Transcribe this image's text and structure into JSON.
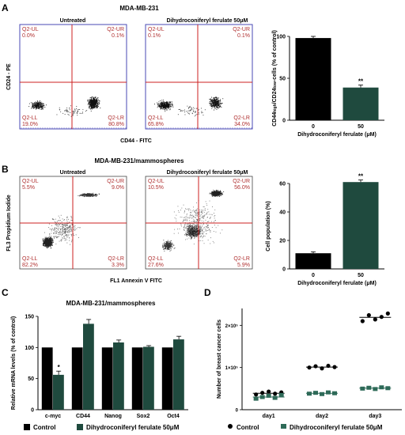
{
  "panel_letters": [
    "A",
    "B",
    "C",
    "D"
  ],
  "panelA": {
    "title": "MDA-MB-231",
    "flow_titles": [
      "Untreated",
      "Dihydroconiferyl ferulate 50μM"
    ],
    "xlabel": "CD44 - FITC",
    "ylabel": "CD24 - PE",
    "quadrants": [
      {
        "ul": "Q2-UL",
        "ul_v": "0.0%",
        "ur": "Q2-UR",
        "ur_v": "0.1%",
        "ll": "Q2-LL",
        "ll_v": "19.0%",
        "lr": "Q2-LR",
        "lr_v": "80.8%"
      },
      {
        "ul": "Q2-UL",
        "ul_v": "0.1%",
        "ur": "Q2-UR",
        "ur_v": "0.1%",
        "ll": "Q2-LL",
        "ll_v": "65.8%",
        "lr": "Q2-LR",
        "lr_v": "34.0%"
      }
    ]
  },
  "panelB": {
    "title": "MDA-MB-231/mammospheres",
    "flow_titles": [
      "Untreated",
      "Dihydroconiferyl ferulate 50μM"
    ],
    "xlabel": "FL1 Annexin V FITC",
    "ylabel": "FL3 Propidium Iodide",
    "quadrants": [
      {
        "ul": "Q2-UL",
        "ul_v": "5.5%",
        "ur": "Q2-UR",
        "ur_v": "9.0%",
        "ll": "Q2-LL",
        "ll_v": "82.2%",
        "lr": "Q2-LR",
        "lr_v": "3.3%"
      },
      {
        "ul": "Q2-UL",
        "ul_v": "10.5%",
        "ur": "Q2-UR",
        "ur_v": "56.0%",
        "ll": "Q2-LL",
        "ll_v": "27.6%",
        "lr": "Q2-LR",
        "lr_v": "5.9%"
      }
    ]
  },
  "panelC": {
    "title": "MDA-MB-231/mammospheres"
  },
  "legend": {
    "control": "Control",
    "treated": "Dihydroconiferyl ferulate 50μM"
  },
  "colors": {
    "control": "#000000",
    "treated": "#1f4a3e",
    "quad_line": "#cc2222",
    "quad_text": "#b03030",
    "frame": "#4a4ab5"
  },
  "chart_data": [
    {
      "id": "A-bar",
      "type": "bar",
      "categories": [
        "0",
        "50"
      ],
      "values": [
        98,
        39
      ],
      "errors": [
        2,
        3
      ],
      "significance": [
        "",
        "**"
      ],
      "xlabel": "Dihydroconiferyl ferulate (μM)",
      "ylabel": "CD44high/CD24low-cells (% of control)",
      "ylim": [
        0,
        100
      ],
      "yticks": [
        0,
        50,
        100
      ]
    },
    {
      "id": "B-bar",
      "type": "bar",
      "categories": [
        "0",
        "50"
      ],
      "values": [
        11,
        61
      ],
      "errors": [
        1,
        1.5
      ],
      "significance": [
        "",
        "**"
      ],
      "xlabel": "Dihydroconiferyl ferulate (μM)",
      "ylabel": "Cell population (%)",
      "ylim": [
        0,
        60
      ],
      "yticks": [
        0,
        20,
        40,
        60
      ]
    },
    {
      "id": "C-bar",
      "type": "bar",
      "categories": [
        "c-myc",
        "CD44",
        "Nanog",
        "Sox2",
        "Oct4"
      ],
      "series": [
        {
          "name": "Control",
          "values": [
            100,
            100,
            100,
            100,
            100
          ],
          "errors": [
            0,
            0,
            0,
            0,
            0
          ]
        },
        {
          "name": "Dihydroconiferyl ferulate 50μM",
          "values": [
            56,
            138,
            108,
            101,
            113
          ],
          "errors": [
            6,
            7,
            4,
            2,
            5
          ]
        }
      ],
      "significance": [
        "*",
        "",
        "",
        "",
        ""
      ],
      "ylabel": "Relative mRNA levels (% of control)",
      "ylim": [
        0,
        150
      ],
      "yticks": [
        0,
        50,
        100,
        150
      ]
    },
    {
      "id": "D-dot",
      "type": "scatter",
      "categories": [
        "day1",
        "day2",
        "day3"
      ],
      "series": [
        {
          "name": "Control",
          "points": [
            [
              36000,
              40000,
              43000,
              38000,
              41000
            ],
            [
              100000,
              103000,
              98000,
              104000,
              101000
            ],
            [
              210000,
              224000,
              214000,
              220000,
              228000
            ]
          ],
          "means": [
            39000,
            101000,
            219000
          ]
        },
        {
          "name": "Dihydroconiferyl ferulate 50μM",
          "points": [
            [
              26000,
              30000,
              33000,
              28000,
              35000
            ],
            [
              38000,
              40000,
              37000,
              41000,
              39000
            ],
            [
              50000,
              52000,
              49000,
              53000,
              51000
            ]
          ],
          "means": [
            30000,
            39000,
            51000
          ]
        }
      ],
      "ylabel": "Number of breast cancer cells",
      "ylim": [
        0,
        240000
      ],
      "yticks": [
        0,
        100000,
        200000
      ],
      "ytick_labels": [
        "0",
        "1×10⁵",
        "2×10⁵"
      ]
    }
  ]
}
